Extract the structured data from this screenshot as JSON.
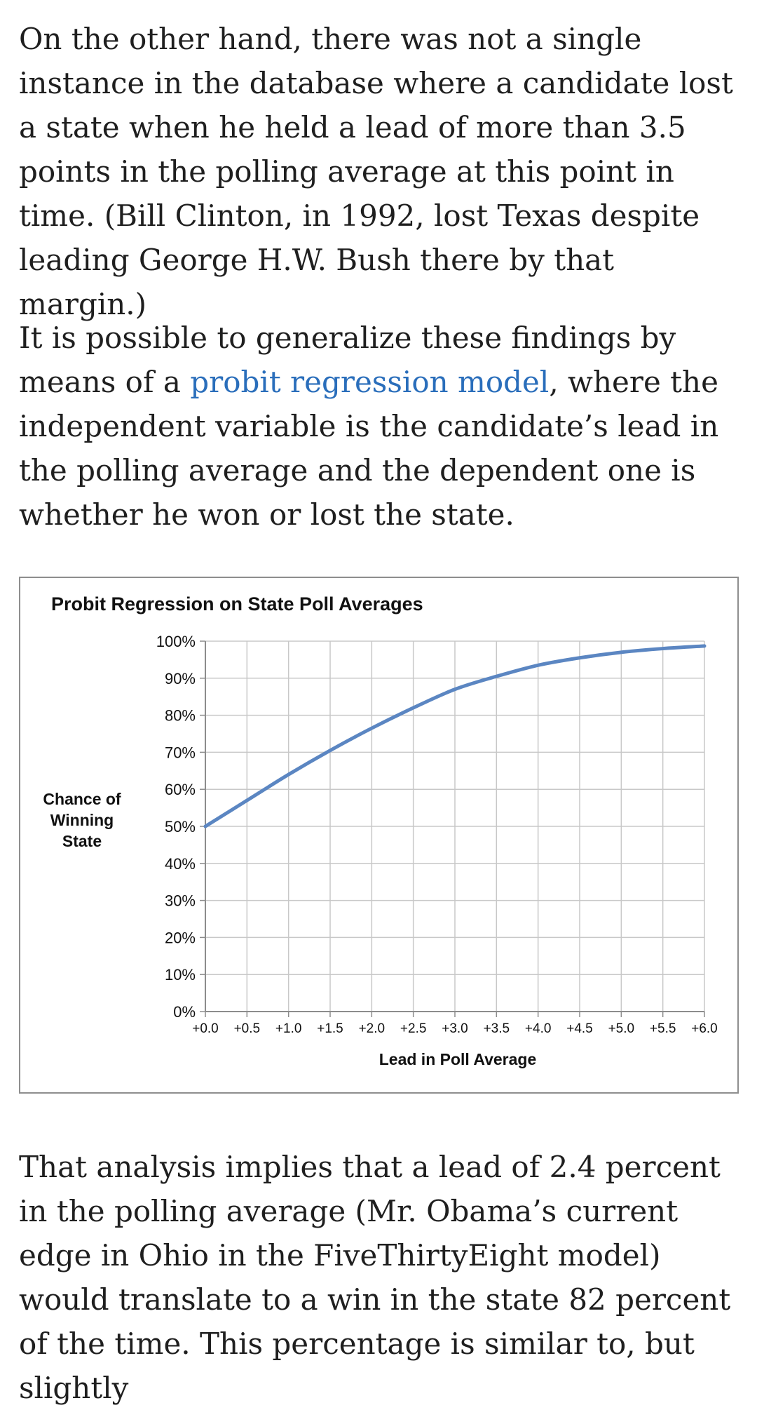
{
  "article": {
    "paragraph1": "On the other hand, there was not a single instance in the database where a candidate lost a state when he held a lead of more than 3.5 points in the polling average at this point in time. (Bill Clinton, in 1992, lost Texas despite leading George H.W. Bush there by that margin.)",
    "paragraph2": {
      "before_link": "It is possible to generalize these findings by means of a ",
      "link_text": "probit regression model",
      "after_link": ", where the independent variable is the candidate’s lead in the polling average and the dependent one is whether he won or lost the state."
    },
    "paragraph3": "That analysis implies that a lead of 2.4 percent in the polling average (Mr. Obama’s current edge in Ohio in the FiveThirtyEight model) would translate to a win in the state 82 percent of the time. This percentage is similar to, but slightly"
  },
  "colors": {
    "text": "#1f1f1f",
    "link": "#2a6ebb",
    "series_line": "#5b86c2",
    "gridline": "#c8c8c8",
    "axis": "#8c8c8c",
    "frame": "#8e8e8e"
  },
  "chart_data": {
    "type": "line",
    "title": "Probit Regression on State Poll Averages",
    "xlabel": "Lead in Poll Average",
    "ylabel_lines": [
      "Chance of",
      "Winning",
      "State"
    ],
    "x_tick_labels": [
      "+0.0",
      "+0.5",
      "+1.0",
      "+1.5",
      "+2.0",
      "+2.5",
      "+3.0",
      "+3.5",
      "+4.0",
      "+4.5",
      "+5.0",
      "+5.5",
      "+6.0"
    ],
    "y_tick_labels": [
      "100%",
      "90%",
      "80%",
      "70%",
      "60%",
      "50%",
      "40%",
      "30%",
      "20%",
      "10%",
      "0%"
    ],
    "xlim": [
      0,
      6
    ],
    "ylim": [
      0,
      100
    ],
    "grid": true,
    "series": [
      {
        "name": "Chance of Winning State",
        "x": [
          0.0,
          0.5,
          1.0,
          1.5,
          2.0,
          2.5,
          3.0,
          3.5,
          4.0,
          4.5,
          5.0,
          5.5,
          6.0
        ],
        "y": [
          50,
          57,
          64,
          70.5,
          76.5,
          82,
          87,
          90.5,
          93.5,
          95.5,
          97,
          98,
          98.7
        ]
      }
    ]
  }
}
